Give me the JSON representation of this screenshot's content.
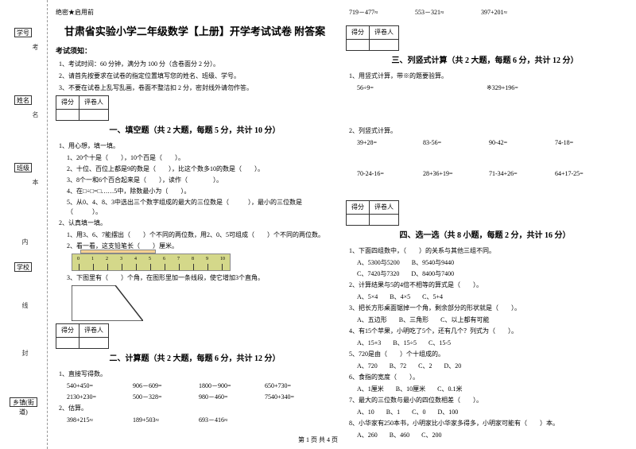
{
  "side": {
    "labels": [
      "学号",
      "姓名",
      "班级",
      "学校",
      "乡镇(街道)"
    ],
    "marks": [
      "考",
      "名",
      "本",
      "内",
      "线",
      "封"
    ]
  },
  "header": {
    "secret": "绝密★启用前",
    "title": "甘肃省实验小学二年级数学【上册】开学考试试卷 附答案",
    "notice_heading": "考试须知：",
    "instructions": [
      "1、考试时间：60 分钟，满分为 100 分（含卷面分 2 分）。",
      "2、请首先按要求在试卷的指定位置填写您的姓名、班级、学号。",
      "3、不要在试卷上乱写乱画，卷面不整洁扣 2 分，密封线外请勿作答。"
    ]
  },
  "score_cells": {
    "score": "得分",
    "judge": "评卷人"
  },
  "section1": {
    "title": "一、填空题（共 2 大题，每题 5 分，共计 10 分）",
    "q1": "1、用心想，填一填。",
    "q1_subs": [
      "1、20个十是（　　），10个百是（　　）。",
      "2、十位、百位上都是9的数是（　　），比这个数多10的数是（　　）。",
      "3、8个一和6个百合起来是（　　），读作（　　　　）。",
      "4、在□÷□=□……5中，除数最小为（　　）。",
      "5、从0、4、8、3中选出三个数字组成的最大的三位数是（　　　），最小的三位数是（　　　）。"
    ],
    "q2": "2、认真填一填。",
    "q2_subs": [
      "1、用3、6、7能摆出（　　）个不同的两位数，用2、0、5可组成（　　）个不同的两位数。",
      "2、看一看，这支铅笔长（　　）厘米。"
    ],
    "q2_sub3": "3、下图里有（　　）个角，在图形里加一条线段，使它增加3个直角。"
  },
  "section2": {
    "title": "二、计算题（共 2 大题，每题 6 分，共计 12 分）",
    "q1": "1、直接写得数。",
    "q1_rows": [
      [
        "540+450=",
        "906－609=",
        "1800－900=",
        "650+730="
      ],
      [
        "2130+230=",
        "500－328=",
        "980－460=",
        "7540+340="
      ]
    ],
    "q2": "2、估算。",
    "q2_rows": [
      [
        "398+215≈",
        "189+503≈",
        "693－416≈"
      ],
      [
        "719－477≈",
        "553－321≈",
        "397+201≈"
      ]
    ]
  },
  "section3": {
    "title": "三、列竖式计算（共 2 大题，每题 6 分，共计 12 分）",
    "q1": "1、用竖式计算，带※的题要验算。",
    "q1_rows": [
      [
        "56÷9=",
        "※329+196="
      ]
    ],
    "q2": "2、列竖式计算。",
    "q2_rows": [
      [
        "39+28=",
        "83-56=",
        "90-42=",
        "74-18="
      ],
      [
        "70-24-16=",
        "28+36+19=",
        "71-34+26=",
        "64+17-25="
      ]
    ]
  },
  "section4": {
    "title": "四、选一选（共 8 小题，每题 2 分，共计 16 分）",
    "q1": "1、下面四组数中，（　　）的关系与其他三组不同。",
    "q1_opts": [
      "A、5300与5200",
      "B、9540与9440"
    ],
    "q1_opts2": [
      "C、7420与7320",
      "D、8400与7400"
    ],
    "q2": "2、计算结果与5的4倍不相等的算式是（　　）。",
    "q2_opts": [
      "A、5×4",
      "B、4×5",
      "C、5+4"
    ],
    "q3": "3、把长方形桌面锯掉一个角，剩余部分的形状就是（　　）。",
    "q3_opts": [
      "A、五边形",
      "B、三角形",
      "C、以上都有可能"
    ],
    "q4": "4、有15个苹果，小明吃了5个，还有几个？列式为（　　）。",
    "q4_opts": [
      "A、15+3",
      "B、15÷5",
      "C、15-5"
    ],
    "q5": "5、720是由（　　）个十组成的。",
    "q5_opts": [
      "A、720",
      "B、72",
      "C、2",
      "D、20"
    ],
    "q6": "6、食指的宽度（　　）。",
    "q6_opts": [
      "A、1厘米",
      "B、10厘米",
      "C、0.1米"
    ],
    "q7": "7、最大的三位数与最小的四位数相差（　　）。",
    "q7_opts": [
      "A、10",
      "B、1",
      "C、0",
      "D、100"
    ],
    "q8": "8、小华家有250本书，小明家比小华家多得多，小明家可能有（　　）本。",
    "q8_opts": [
      "A、260",
      "B、460",
      "C、200"
    ]
  },
  "footer": "第 1 页 共 4 页"
}
